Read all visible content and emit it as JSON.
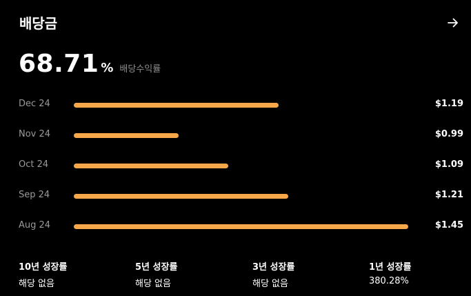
{
  "header": {
    "title": "배당금",
    "arrow_icon": "arrow-right-icon"
  },
  "yield": {
    "value": "68.71",
    "unit": "%",
    "label": "배당수익률"
  },
  "chart_data": {
    "type": "bar",
    "orientation": "horizontal",
    "categories": [
      "Dec 24",
      "Nov 24",
      "Oct 24",
      "Sep 24",
      "Aug 24"
    ],
    "values": [
      1.19,
      0.99,
      1.09,
      1.21,
      1.45
    ],
    "value_labels": [
      "$1.19",
      "$0.99",
      "$1.09",
      "$1.21",
      "$1.45"
    ],
    "bar_color": "#f5a74a",
    "xlim": [
      0.78,
      1.45
    ]
  },
  "growth": [
    {
      "title": "10년 성장률",
      "value": "해당 없음"
    },
    {
      "title": "5년 성장률",
      "value": "해당 없음"
    },
    {
      "title": "3년 성장률",
      "value": "해당 없음"
    },
    {
      "title": "1년 성장률",
      "value": "380.28%"
    }
  ]
}
